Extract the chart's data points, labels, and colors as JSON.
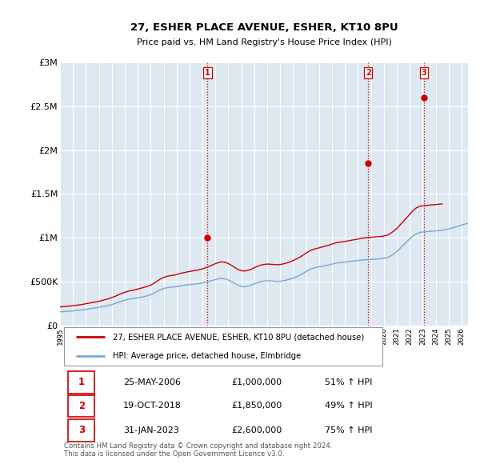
{
  "title": "27, ESHER PLACE AVENUE, ESHER, KT10 8PU",
  "subtitle": "Price paid vs. HM Land Registry's House Price Index (HPI)",
  "xmin": 1995.0,
  "xmax": 2026.5,
  "ymin": 0,
  "ymax": 3000000,
  "yticks": [
    0,
    500000,
    1000000,
    1500000,
    2000000,
    2500000,
    3000000
  ],
  "ytick_labels": [
    "£0",
    "£500K",
    "£1M",
    "£1.5M",
    "£2M",
    "£2.5M",
    "£3M"
  ],
  "sale_dates": [
    2006.39,
    2018.8,
    2023.08
  ],
  "sale_prices": [
    1000000,
    1850000,
    2600000
  ],
  "sale_labels": [
    "1",
    "2",
    "3"
  ],
  "vline_color": "#cc0000",
  "sale_marker_color": "#cc0000",
  "red_line_color": "#cc0000",
  "blue_line_color": "#7aa8d2",
  "background_color": "#dde8f0",
  "grid_color": "#ffffff",
  "legend_line1": "27, ESHER PLACE AVENUE, ESHER, KT10 8PU (detached house)",
  "legend_line2": "HPI: Average price, detached house, Elmbridge",
  "table_rows": [
    [
      "1",
      "25-MAY-2006",
      "£1,000,000",
      "51% ↑ HPI"
    ],
    [
      "2",
      "19-OCT-2018",
      "£1,850,000",
      "49% ↑ HPI"
    ],
    [
      "3",
      "31-JAN-2023",
      "£2,600,000",
      "75% ↑ HPI"
    ]
  ],
  "footer": "Contains HM Land Registry data © Crown copyright and database right 2024.\nThis data is licensed under the Open Government Licence v3.0.",
  "red_hpi_data": [
    [
      1995.0,
      210000
    ],
    [
      1995.25,
      215000
    ],
    [
      1995.5,
      218000
    ],
    [
      1995.75,
      222000
    ],
    [
      1996.0,
      225000
    ],
    [
      1996.25,
      230000
    ],
    [
      1996.5,
      235000
    ],
    [
      1996.75,
      240000
    ],
    [
      1997.0,
      248000
    ],
    [
      1997.25,
      255000
    ],
    [
      1997.5,
      262000
    ],
    [
      1997.75,
      268000
    ],
    [
      1998.0,
      275000
    ],
    [
      1998.25,
      285000
    ],
    [
      1998.5,
      295000
    ],
    [
      1998.75,
      305000
    ],
    [
      1999.0,
      318000
    ],
    [
      1999.25,
      332000
    ],
    [
      1999.5,
      348000
    ],
    [
      1999.75,
      365000
    ],
    [
      2000.0,
      378000
    ],
    [
      2000.25,
      390000
    ],
    [
      2000.5,
      398000
    ],
    [
      2000.75,
      405000
    ],
    [
      2001.0,
      415000
    ],
    [
      2001.25,
      425000
    ],
    [
      2001.5,
      435000
    ],
    [
      2001.75,
      445000
    ],
    [
      2002.0,
      460000
    ],
    [
      2002.25,
      480000
    ],
    [
      2002.5,
      505000
    ],
    [
      2002.75,
      530000
    ],
    [
      2003.0,
      548000
    ],
    [
      2003.25,
      560000
    ],
    [
      2003.5,
      568000
    ],
    [
      2003.75,
      572000
    ],
    [
      2004.0,
      580000
    ],
    [
      2004.25,
      592000
    ],
    [
      2004.5,
      600000
    ],
    [
      2004.75,
      608000
    ],
    [
      2005.0,
      615000
    ],
    [
      2005.25,
      622000
    ],
    [
      2005.5,
      628000
    ],
    [
      2005.75,
      635000
    ],
    [
      2006.0,
      645000
    ],
    [
      2006.25,
      658000
    ],
    [
      2006.5,
      672000
    ],
    [
      2006.75,
      688000
    ],
    [
      2007.0,
      705000
    ],
    [
      2007.25,
      718000
    ],
    [
      2007.5,
      725000
    ],
    [
      2007.75,
      720000
    ],
    [
      2008.0,
      705000
    ],
    [
      2008.25,
      685000
    ],
    [
      2008.5,
      660000
    ],
    [
      2008.75,
      638000
    ],
    [
      2009.0,
      625000
    ],
    [
      2009.25,
      620000
    ],
    [
      2009.5,
      628000
    ],
    [
      2009.75,
      640000
    ],
    [
      2010.0,
      658000
    ],
    [
      2010.25,
      675000
    ],
    [
      2010.5,
      688000
    ],
    [
      2010.75,
      695000
    ],
    [
      2011.0,
      700000
    ],
    [
      2011.25,
      698000
    ],
    [
      2011.5,
      695000
    ],
    [
      2011.75,
      692000
    ],
    [
      2012.0,
      695000
    ],
    [
      2012.25,
      702000
    ],
    [
      2012.5,
      712000
    ],
    [
      2012.75,
      725000
    ],
    [
      2013.0,
      740000
    ],
    [
      2013.25,
      758000
    ],
    [
      2013.5,
      778000
    ],
    [
      2013.75,
      800000
    ],
    [
      2014.0,
      825000
    ],
    [
      2014.25,
      848000
    ],
    [
      2014.5,
      865000
    ],
    [
      2014.75,
      875000
    ],
    [
      2015.0,
      885000
    ],
    [
      2015.25,
      895000
    ],
    [
      2015.5,
      905000
    ],
    [
      2015.75,
      915000
    ],
    [
      2016.0,
      928000
    ],
    [
      2016.25,
      940000
    ],
    [
      2016.5,
      948000
    ],
    [
      2016.75,
      952000
    ],
    [
      2017.0,
      958000
    ],
    [
      2017.25,
      965000
    ],
    [
      2017.5,
      972000
    ],
    [
      2017.75,
      978000
    ],
    [
      2018.0,
      985000
    ],
    [
      2018.25,
      992000
    ],
    [
      2018.5,
      998000
    ],
    [
      2018.75,
      1002000
    ],
    [
      2019.0,
      1005000
    ],
    [
      2019.25,
      1008000
    ],
    [
      2019.5,
      1012000
    ],
    [
      2019.75,
      1015000
    ],
    [
      2020.0,
      1020000
    ],
    [
      2020.25,
      1028000
    ],
    [
      2020.5,
      1048000
    ],
    [
      2020.75,
      1075000
    ],
    [
      2021.0,
      1105000
    ],
    [
      2021.25,
      1145000
    ],
    [
      2021.5,
      1185000
    ],
    [
      2021.75,
      1225000
    ],
    [
      2022.0,
      1268000
    ],
    [
      2022.25,
      1308000
    ],
    [
      2022.5,
      1340000
    ],
    [
      2022.75,
      1358000
    ],
    [
      2023.0,
      1365000
    ],
    [
      2023.25,
      1368000
    ],
    [
      2023.5,
      1372000
    ],
    [
      2023.75,
      1375000
    ],
    [
      2024.0,
      1378000
    ],
    [
      2024.25,
      1382000
    ],
    [
      2024.5,
      1385000
    ]
  ],
  "blue_hpi_data": [
    [
      1995.0,
      155000
    ],
    [
      1995.25,
      158000
    ],
    [
      1995.5,
      160000
    ],
    [
      1995.75,
      163000
    ],
    [
      1996.0,
      166000
    ],
    [
      1996.25,
      170000
    ],
    [
      1996.5,
      174000
    ],
    [
      1996.75,
      178000
    ],
    [
      1997.0,
      184000
    ],
    [
      1997.25,
      190000
    ],
    [
      1997.5,
      196000
    ],
    [
      1997.75,
      201000
    ],
    [
      1998.0,
      207000
    ],
    [
      1998.25,
      214000
    ],
    [
      1998.5,
      221000
    ],
    [
      1998.75,
      228000
    ],
    [
      1999.0,
      238000
    ],
    [
      1999.25,
      250000
    ],
    [
      1999.5,
      263000
    ],
    [
      1999.75,
      277000
    ],
    [
      2000.0,
      288000
    ],
    [
      2000.25,
      298000
    ],
    [
      2000.5,
      304000
    ],
    [
      2000.75,
      308000
    ],
    [
      2001.0,
      315000
    ],
    [
      2001.25,
      322000
    ],
    [
      2001.5,
      330000
    ],
    [
      2001.75,
      338000
    ],
    [
      2002.0,
      350000
    ],
    [
      2002.25,
      368000
    ],
    [
      2002.5,
      388000
    ],
    [
      2002.75,
      408000
    ],
    [
      2003.0,
      422000
    ],
    [
      2003.25,
      430000
    ],
    [
      2003.5,
      435000
    ],
    [
      2003.75,
      438000
    ],
    [
      2004.0,
      443000
    ],
    [
      2004.25,
      450000
    ],
    [
      2004.5,
      456000
    ],
    [
      2004.75,
      462000
    ],
    [
      2005.0,
      466000
    ],
    [
      2005.25,
      470000
    ],
    [
      2005.5,
      474000
    ],
    [
      2005.75,
      478000
    ],
    [
      2006.0,
      485000
    ],
    [
      2006.25,
      492000
    ],
    [
      2006.5,
      502000
    ],
    [
      2006.75,
      512000
    ],
    [
      2007.0,
      524000
    ],
    [
      2007.25,
      532000
    ],
    [
      2007.5,
      535000
    ],
    [
      2007.75,
      530000
    ],
    [
      2008.0,
      518000
    ],
    [
      2008.25,
      500000
    ],
    [
      2008.5,
      478000
    ],
    [
      2008.75,
      458000
    ],
    [
      2009.0,
      445000
    ],
    [
      2009.25,
      440000
    ],
    [
      2009.5,
      448000
    ],
    [
      2009.75,
      460000
    ],
    [
      2010.0,
      475000
    ],
    [
      2010.25,
      490000
    ],
    [
      2010.5,
      500000
    ],
    [
      2010.75,
      506000
    ],
    [
      2011.0,
      510000
    ],
    [
      2011.25,
      508000
    ],
    [
      2011.5,
      505000
    ],
    [
      2011.75,
      502000
    ],
    [
      2012.0,
      505000
    ],
    [
      2012.25,
      510000
    ],
    [
      2012.5,
      518000
    ],
    [
      2012.75,
      528000
    ],
    [
      2013.0,
      540000
    ],
    [
      2013.25,
      555000
    ],
    [
      2013.5,
      572000
    ],
    [
      2013.75,
      592000
    ],
    [
      2014.0,
      615000
    ],
    [
      2014.25,
      635000
    ],
    [
      2014.5,
      650000
    ],
    [
      2014.75,
      660000
    ],
    [
      2015.0,
      668000
    ],
    [
      2015.25,
      675000
    ],
    [
      2015.5,
      682000
    ],
    [
      2015.75,
      690000
    ],
    [
      2016.0,
      700000
    ],
    [
      2016.25,
      710000
    ],
    [
      2016.5,
      715000
    ],
    [
      2016.75,
      718000
    ],
    [
      2017.0,
      722000
    ],
    [
      2017.25,
      728000
    ],
    [
      2017.5,
      732000
    ],
    [
      2017.75,
      736000
    ],
    [
      2018.0,
      740000
    ],
    [
      2018.25,
      745000
    ],
    [
      2018.5,
      748000
    ],
    [
      2018.75,
      750000
    ],
    [
      2019.0,
      752000
    ],
    [
      2019.25,
      755000
    ],
    [
      2019.5,
      758000
    ],
    [
      2019.75,
      760000
    ],
    [
      2020.0,
      765000
    ],
    [
      2020.25,
      772000
    ],
    [
      2020.5,
      790000
    ],
    [
      2020.75,
      815000
    ],
    [
      2021.0,
      842000
    ],
    [
      2021.25,
      878000
    ],
    [
      2021.5,
      915000
    ],
    [
      2021.75,
      952000
    ],
    [
      2022.0,
      988000
    ],
    [
      2022.25,
      1020000
    ],
    [
      2022.5,
      1045000
    ],
    [
      2022.75,
      1060000
    ],
    [
      2023.0,
      1065000
    ],
    [
      2023.25,
      1068000
    ],
    [
      2023.5,
      1072000
    ],
    [
      2023.75,
      1075000
    ],
    [
      2024.0,
      1078000
    ],
    [
      2024.25,
      1082000
    ],
    [
      2024.5,
      1085000
    ],
    [
      2025.0,
      1100000
    ],
    [
      2025.5,
      1120000
    ],
    [
      2026.0,
      1145000
    ],
    [
      2026.5,
      1165000
    ]
  ],
  "xticks": [
    1995,
    1996,
    1997,
    1998,
    1999,
    2000,
    2001,
    2002,
    2003,
    2004,
    2005,
    2006,
    2007,
    2008,
    2009,
    2010,
    2011,
    2012,
    2013,
    2014,
    2015,
    2016,
    2017,
    2018,
    2019,
    2020,
    2021,
    2022,
    2023,
    2024,
    2025,
    2026
  ]
}
